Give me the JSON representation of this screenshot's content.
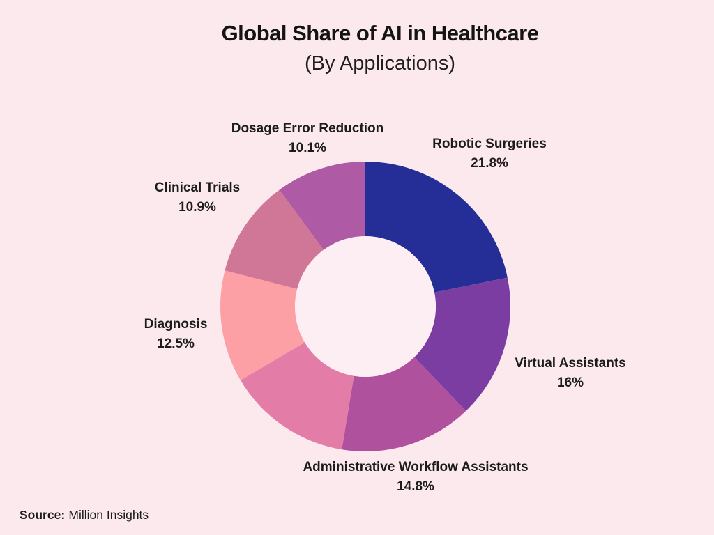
{
  "page": {
    "background": "#fce9ed",
    "text_color": "#1a1a1a"
  },
  "header": {
    "title": "Global Share of AI in Healthcare",
    "subtitle": "(By Applications)"
  },
  "chart_data": {
    "type": "pie",
    "variant": "donut",
    "title": "Global Share of AI in Healthcare",
    "subtitle": "(By Applications)",
    "unit": "%",
    "start_position": "top",
    "direction": "clockwise",
    "donut_hole_color": "#fdeef4",
    "background": "#fce9ed",
    "segments": [
      {
        "label": "Robotic Surgeries",
        "value": 21.8,
        "pct_text": "21.8%",
        "color": "#252e97"
      },
      {
        "label": "Virtual Assistants",
        "value": 16,
        "pct_text": "16%",
        "color": "#7c3da2"
      },
      {
        "label": "Administrative Workflow Assistants",
        "value": 14.8,
        "pct_text": "14.8%",
        "color": "#b0519e"
      },
      {
        "label": "",
        "value": 13.9,
        "pct_text": "",
        "color": "#e37ca6"
      },
      {
        "label": "Diagnosis",
        "value": 12.5,
        "pct_text": "12.5%",
        "color": "#fda0a6"
      },
      {
        "label": "Clinical Trials",
        "value": 10.9,
        "pct_text": "10.9%",
        "color": "#d07697"
      },
      {
        "label": "Dosage Error Reduction",
        "value": 10.1,
        "pct_text": "10.1%",
        "color": "#af5aa4"
      }
    ]
  },
  "footer": {
    "source_label": "Source:",
    "source_value": "Million Insights"
  }
}
